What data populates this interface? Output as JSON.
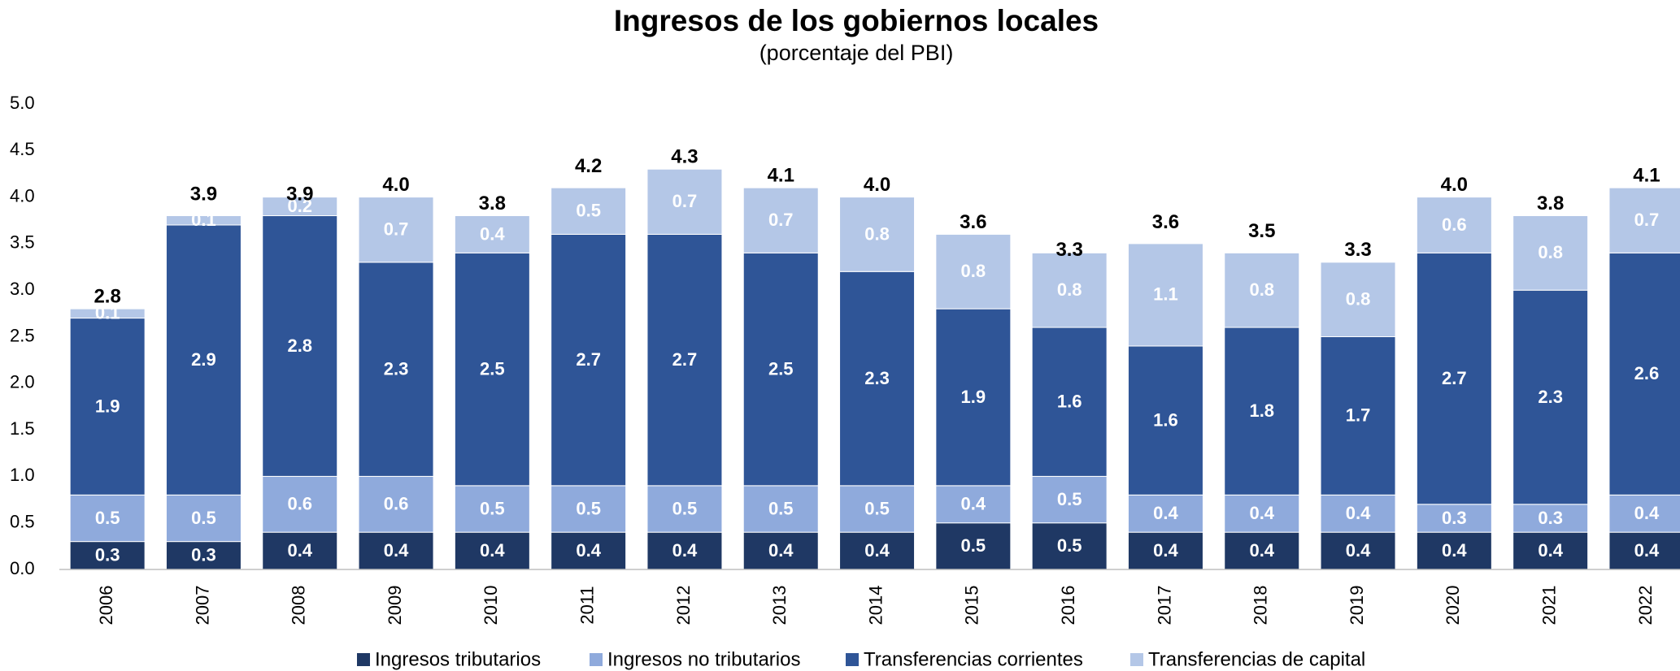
{
  "chart_data": {
    "type": "stacked_bar",
    "title": "Ingresos de los gobiernos locales",
    "subtitle": "(porcentaje del PBI)",
    "categories": [
      "2006",
      "2007",
      "2008",
      "2009",
      "2010",
      "2011",
      "2012",
      "2013",
      "2014",
      "2015",
      "2016",
      "2017",
      "2018",
      "2019",
      "2020",
      "2021",
      "2022"
    ],
    "series": [
      {
        "name": "Ingresos tributarios",
        "color": "#1f3864",
        "values": [
          0.3,
          0.3,
          0.4,
          0.4,
          0.4,
          0.4,
          0.4,
          0.4,
          0.4,
          0.5,
          0.5,
          0.4,
          0.4,
          0.4,
          0.4,
          0.4,
          0.4
        ]
      },
      {
        "name": "Ingresos no tributarios",
        "color": "#8faadc",
        "values": [
          0.5,
          0.5,
          0.6,
          0.6,
          0.5,
          0.5,
          0.5,
          0.5,
          0.5,
          0.4,
          0.5,
          0.4,
          0.4,
          0.4,
          0.3,
          0.3,
          0.4
        ]
      },
      {
        "name": "Transferencias corrientes",
        "color": "#2f5597",
        "values": [
          1.9,
          2.9,
          2.8,
          2.3,
          2.5,
          2.7,
          2.7,
          2.5,
          2.3,
          1.9,
          1.6,
          1.6,
          1.8,
          1.7,
          2.7,
          2.3,
          2.6
        ]
      },
      {
        "name": "Transferencias de capital",
        "color": "#b4c7e7",
        "values": [
          0.1,
          0.1,
          0.2,
          0.7,
          0.4,
          0.5,
          0.7,
          0.7,
          0.8,
          0.8,
          0.8,
          1.1,
          0.8,
          0.8,
          0.6,
          0.8,
          0.7
        ]
      }
    ],
    "totals": {
      "values": [
        2.8,
        3.9,
        3.9,
        4,
        3.8,
        4.2,
        4.3,
        4.1,
        4,
        3.6,
        3.3,
        3.6,
        3.5,
        3.3,
        4,
        3.8,
        4.1
      ],
      "value_labels": [
        "2.8",
        "3.9",
        "3.9",
        "4.0",
        "3.8",
        "4.2",
        "4.3",
        "4.1",
        "4.0",
        "3.6",
        "3.3",
        "3.6",
        "3.5",
        "3.3",
        "4.0",
        "3.8",
        "4.1"
      ]
    },
    "ylim": [
      0,
      5
    ],
    "yticks": [
      {
        "value": 0,
        "label": "0.0"
      },
      {
        "value": 0.5,
        "label": "0.5"
      },
      {
        "value": 1,
        "label": "1.0"
      },
      {
        "value": 1.5,
        "label": "1.5"
      },
      {
        "value": 2,
        "label": "2.0"
      },
      {
        "value": 2.5,
        "label": "2.5"
      },
      {
        "value": 3,
        "label": "3.0"
      },
      {
        "value": 3.5,
        "label": "3.5"
      },
      {
        "value": 4,
        "label": "4.0"
      },
      {
        "value": 4.5,
        "label": "4.5"
      },
      {
        "value": 5,
        "label": "5.0"
      }
    ],
    "grid": false,
    "legend": "bottom"
  }
}
